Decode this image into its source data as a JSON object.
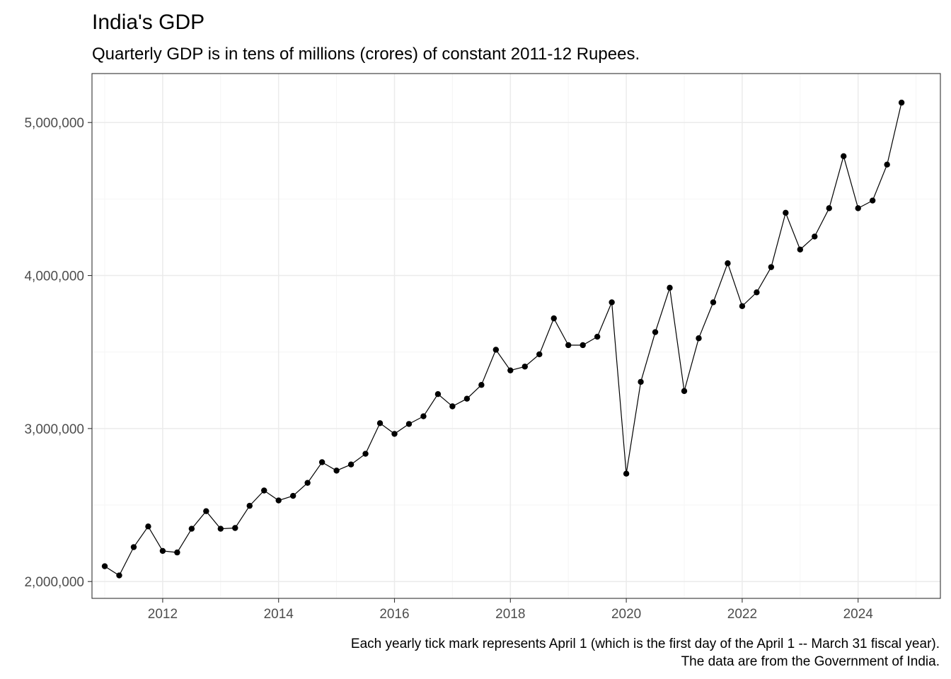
{
  "chart_data": {
    "type": "line",
    "title": "India's GDP",
    "subtitle": "Quarterly GDP is in tens of millions (crores) of constant 2011-12 Rupees.",
    "caption": [
      "Each yearly tick mark represents April 1 (which is the first day of the April 1 -- March 31 fiscal year).",
      "The data are from the Government of India."
    ],
    "xlabel": "",
    "ylabel": "",
    "xlim": [
      2010.78,
      2025.42
    ],
    "ylim": [
      1890000,
      5320000
    ],
    "x_ticks": [
      2012,
      2014,
      2016,
      2018,
      2020,
      2022,
      2024
    ],
    "x_tick_labels": [
      "2012",
      "2014",
      "2016",
      "2018",
      "2020",
      "2022",
      "2024"
    ],
    "y_ticks": [
      2000000,
      3000000,
      4000000,
      5000000
    ],
    "y_tick_labels": [
      "2,000,000",
      "3,000,000",
      "4,000,000",
      "5,000,000"
    ],
    "grid": true,
    "legend": "none",
    "colors": {
      "line": "#000000",
      "point": "#000000",
      "grid_major": "#ebebeb",
      "grid_minor": "#f5f5f5",
      "panel_border": "#333333"
    },
    "series": [
      {
        "x": [
          2011.0,
          2011.25,
          2011.5,
          2011.75,
          2012.0,
          2012.25,
          2012.5,
          2012.75,
          2013.0,
          2013.25,
          2013.5,
          2013.75,
          2014.0,
          2014.25,
          2014.5,
          2014.75,
          2015.0,
          2015.25,
          2015.5,
          2015.75,
          2016.0,
          2016.25,
          2016.5,
          2016.75,
          2017.0,
          2017.25,
          2017.5,
          2017.75,
          2018.0,
          2018.25,
          2018.5,
          2018.75,
          2019.0,
          2019.25,
          2019.5,
          2019.75,
          2020.0,
          2020.25,
          2020.5,
          2020.75,
          2021.0,
          2021.25,
          2021.5,
          2021.75,
          2022.0,
          2022.25,
          2022.5,
          2022.75,
          2023.0,
          2023.25,
          2023.5,
          2023.75,
          2024.0,
          2024.25,
          2024.5,
          2024.75
        ],
        "values": [
          2100000,
          2040000,
          2225000,
          2360000,
          2200000,
          2190000,
          2345000,
          2460000,
          2345000,
          2350000,
          2495000,
          2595000,
          2530000,
          2560000,
          2645000,
          2780000,
          2725000,
          2765000,
          2835000,
          3035000,
          2965000,
          3030000,
          3080000,
          3225000,
          3145000,
          3195000,
          3285000,
          3515000,
          3380000,
          3405000,
          3485000,
          3720000,
          3545000,
          3545000,
          3600000,
          3825000,
          2705000,
          3305000,
          3630000,
          3920000,
          3245000,
          3590000,
          3825000,
          4080000,
          3800000,
          3890000,
          4055000,
          4410000,
          4170000,
          4255000,
          4440000,
          4780000,
          4440000,
          4490000,
          4725000,
          5130000
        ]
      }
    ]
  }
}
